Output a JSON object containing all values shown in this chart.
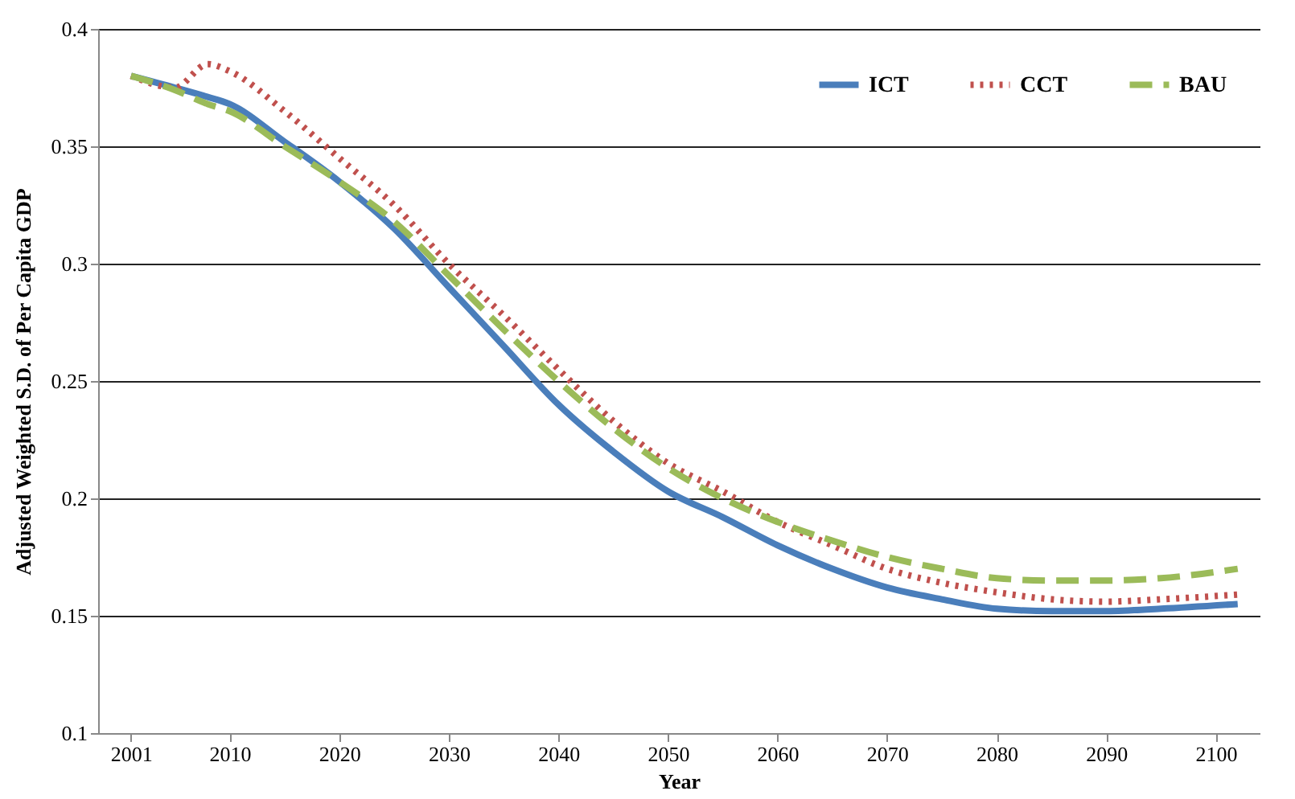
{
  "chart_data": {
    "type": "line",
    "xlabel": "Year",
    "ylabel": "Adjusted Weighted S.D. of Per Capita GDP",
    "x": [
      2001,
      2005,
      2008,
      2010,
      2015,
      2020,
      2025,
      2030,
      2035,
      2040,
      2045,
      2050,
      2055,
      2060,
      2065,
      2070,
      2075,
      2080,
      2085,
      2090,
      2095,
      2102
    ],
    "xlim": [
      1998,
      2104
    ],
    "xticks": [
      2001,
      2010,
      2020,
      2030,
      2040,
      2050,
      2060,
      2070,
      2080,
      2090,
      2100
    ],
    "ylim": [
      0.1,
      0.4
    ],
    "yticks": [
      0.1,
      0.15,
      0.2,
      0.25,
      0.3,
      0.35,
      0.4
    ],
    "grid": "y",
    "legend": "top right",
    "series": [
      {
        "name": "ICT",
        "color": "#4a7ebb",
        "line_style": "solid",
        "values": [
          0.38,
          0.375,
          0.371,
          0.368,
          0.352,
          0.335,
          0.315,
          0.29,
          0.265,
          0.24,
          0.22,
          0.203,
          0.192,
          0.18,
          0.17,
          0.162,
          0.157,
          0.153,
          0.152,
          0.152,
          0.153,
          0.155
        ]
      },
      {
        "name": "CCT",
        "color": "#c0504d",
        "line_style": "dotted",
        "values": [
          0.38,
          0.375,
          0.385,
          0.382,
          0.365,
          0.345,
          0.325,
          0.3,
          0.278,
          0.255,
          0.233,
          0.215,
          0.203,
          0.19,
          0.18,
          0.17,
          0.164,
          0.16,
          0.157,
          0.156,
          0.157,
          0.159
        ]
      },
      {
        "name": "BAU",
        "color": "#9bbb59",
        "line_style": "dashed",
        "values": [
          0.38,
          0.374,
          0.368,
          0.365,
          0.35,
          0.335,
          0.318,
          0.295,
          0.272,
          0.25,
          0.23,
          0.213,
          0.2,
          0.19,
          0.182,
          0.175,
          0.17,
          0.166,
          0.165,
          0.165,
          0.166,
          0.17
        ]
      }
    ]
  }
}
